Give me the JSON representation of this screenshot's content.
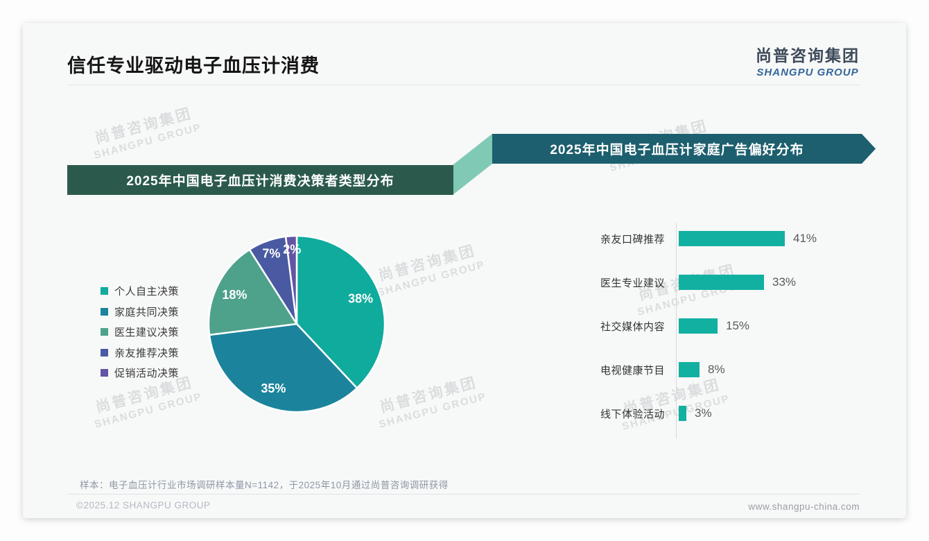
{
  "page": {
    "title": "信任专业驱动电子血压计消费",
    "logo": {
      "cn": "尚普咨询集团",
      "en": "SHANGPU GROUP"
    },
    "watermark": {
      "cn": "尚普咨询集团",
      "en": "SHANGPU GROUP"
    },
    "footer": {
      "note": "样本：电子血压计行业市场调研样本量N=1142，于2025年10月通过尚普咨询调研获得",
      "copyright": "©2025.12 SHANGPU GROUP",
      "website": "www.shangpu-china.com"
    }
  },
  "colors": {
    "banner_left_bg": "#2b5a4d",
    "banner_right_bg": "#1d5f6e",
    "banner_connector": "#7fc9b5",
    "card_bg": "#f7f8f8"
  },
  "chart_data": [
    {
      "type": "pie",
      "title": "2025年中国电子血压计消费决策者类型分布",
      "legend_position": "left",
      "labels": [
        "个人自主决策",
        "家庭共同决策",
        "医生建议决策",
        "亲友推荐决策",
        "促销活动决策"
      ],
      "values": [
        38,
        35,
        18,
        7,
        2
      ],
      "unit": "%",
      "colors": [
        "#0fab9d",
        "#1b849c",
        "#4ea28c",
        "#4a5aa2",
        "#6355a4"
      ],
      "start_angle_deg": 0,
      "direction": "clockwise"
    },
    {
      "type": "bar",
      "title": "2025年中国电子血压计家庭广告偏好分布",
      "orientation": "horizontal",
      "categories": [
        "亲友口碑推荐",
        "医生专业建议",
        "社交媒体内容",
        "电视健康节目",
        "线下体验活动"
      ],
      "values": [
        41,
        33,
        15,
        8,
        3
      ],
      "unit": "%",
      "bar_color": "#12b0a1",
      "xlim": [
        0,
        45
      ],
      "grid": false,
      "value_labels": "outside-right"
    }
  ]
}
